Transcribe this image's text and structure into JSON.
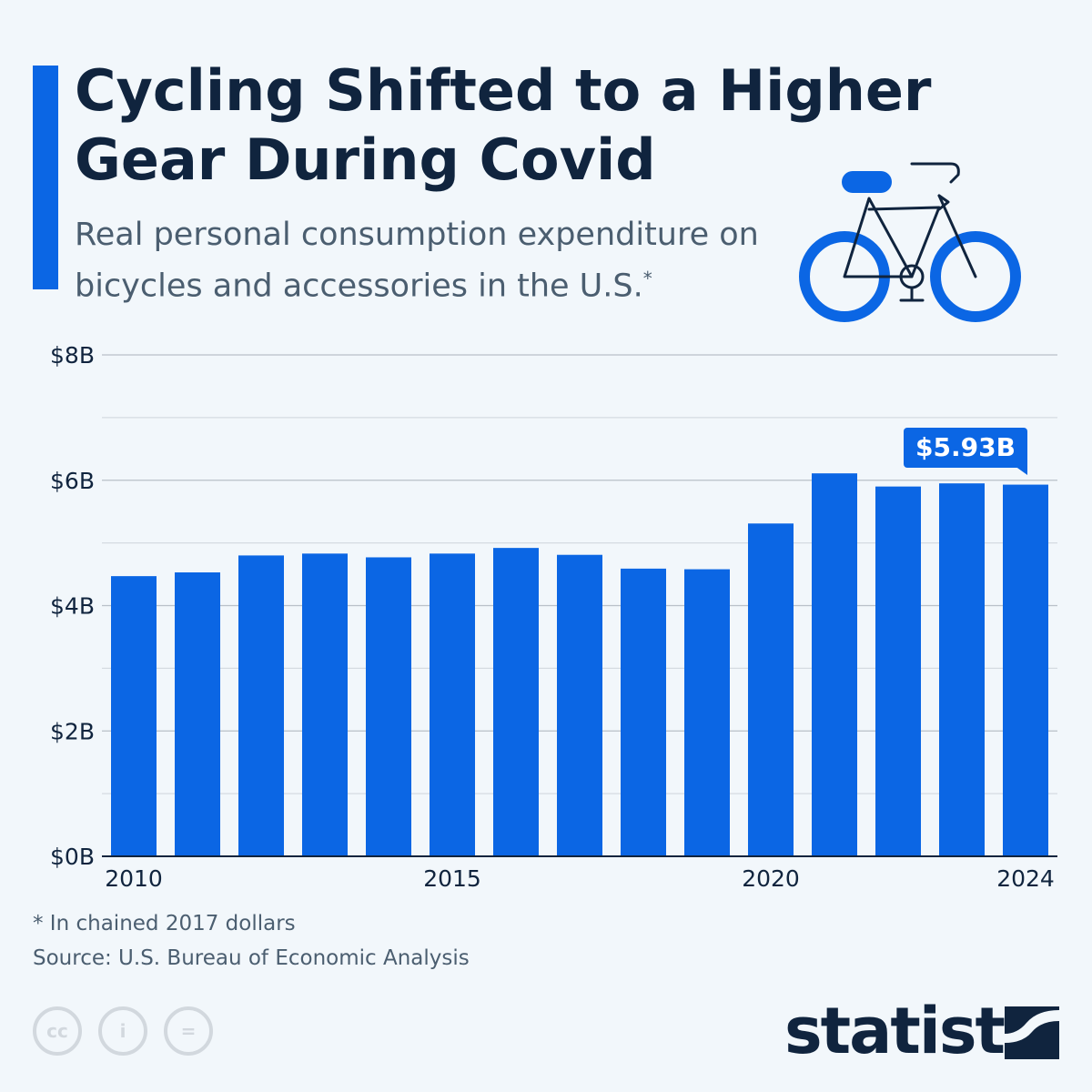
{
  "title": "Cycling Shifted to a Higher Gear During Covid",
  "subtitle": "Real personal consumption expenditure on bicycles and accessories in the U.S.",
  "subtitle_marker": "*",
  "footnote": "* In chained 2017 dollars",
  "source": "Source: U.S. Bureau of Economic Analysis",
  "brand": "statista",
  "icons": [
    "bicycle-icon",
    "cc-icon",
    "attribution-icon",
    "no-derivatives-icon",
    "statista-logo-icon"
  ],
  "colors": {
    "bar": "#0b66e4",
    "title": "#10243e",
    "background": "#f2f7fb"
  },
  "chart_data": {
    "type": "bar",
    "categories": [
      "2010",
      "2011",
      "2012",
      "2013",
      "2014",
      "2015",
      "2016",
      "2017",
      "2018",
      "2019",
      "2020",
      "2021",
      "2022",
      "2023",
      "2024"
    ],
    "values": [
      4.47,
      4.53,
      4.8,
      4.83,
      4.77,
      4.83,
      4.92,
      4.81,
      4.59,
      4.58,
      5.31,
      6.11,
      5.9,
      5.95,
      5.93
    ],
    "x_tick_labels": [
      "2010",
      "2015",
      "2020",
      "2024"
    ],
    "y_tick_labels": [
      "$0B",
      "$2B",
      "$4B",
      "$6B",
      "$8B"
    ],
    "ylim": [
      0,
      8
    ],
    "unit": "billion USD",
    "grid": true,
    "annotation": {
      "category": "2024",
      "text": "$5.93B"
    }
  }
}
